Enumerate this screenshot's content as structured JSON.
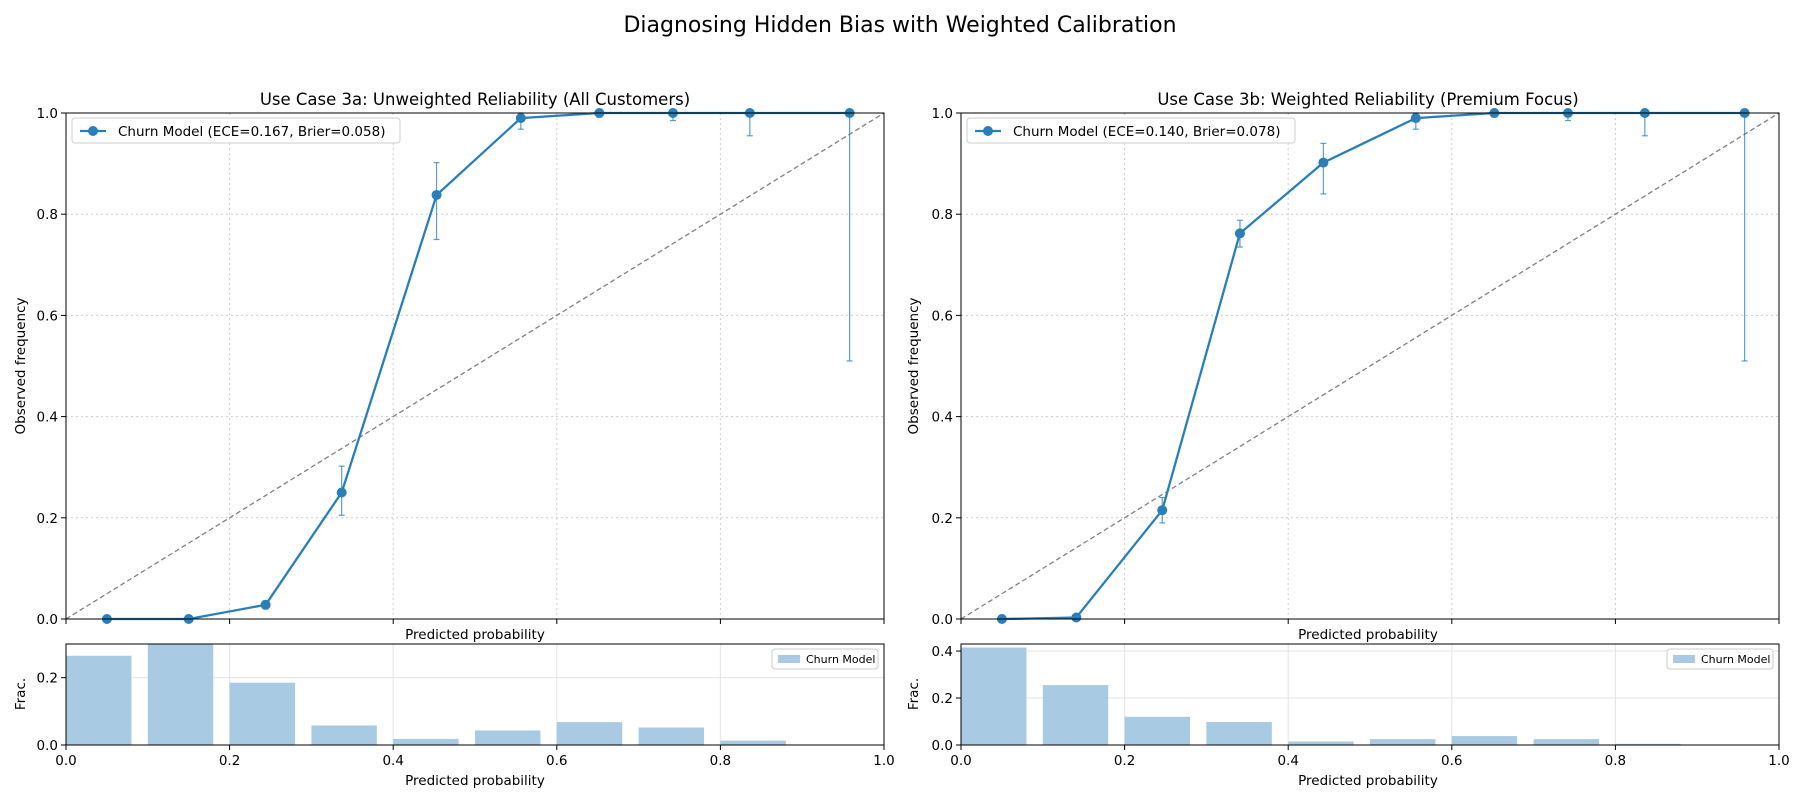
{
  "figure_title": "Diagnosing Hidden Bias with Weighted Calibration",
  "colors": {
    "line": "#2a7fb8",
    "bar": "#a8cbe3",
    "diagonal": "#808080",
    "grid": "#cccccc"
  },
  "chart_data": [
    {
      "type": "line",
      "title": "Use Case 3a: Unweighted Reliability (All Customers)",
      "xlabel": "Predicted probability",
      "ylabel": "Observed frequency",
      "xlim": [
        0,
        1
      ],
      "ylim": [
        0,
        1
      ],
      "xticks": [
        "",
        "",
        "",
        "",
        "",
        ""
      ],
      "yticks": [
        "0.0",
        "0.2",
        "0.4",
        "0.6",
        "0.8",
        "1.0"
      ],
      "grid": true,
      "legend_position": "top-left",
      "series": [
        {
          "name": "Churn Model (ECE=0.167, Brier=0.058)",
          "x": [
            0.05,
            0.15,
            0.244,
            0.337,
            0.453,
            0.556,
            0.652,
            0.742,
            0.836,
            0.958
          ],
          "y": [
            0.0,
            0.0,
            0.028,
            0.25,
            0.838,
            0.99,
            1.0,
            1.0,
            1.0,
            1.0
          ],
          "err_low": [
            0.0,
            0.0,
            0.02,
            0.205,
            0.75,
            0.968,
            0.992,
            0.985,
            0.955,
            0.51
          ],
          "err_high": [
            0.0,
            0.0,
            0.036,
            0.302,
            0.902,
            1.0,
            1.0,
            1.0,
            1.0,
            1.0
          ]
        }
      ],
      "diagonal": true,
      "histogram": {
        "xlabel": "Predicted probability",
        "ylabel": "Frac.",
        "legend": "Churn Model",
        "legend_position": "top-right",
        "ylim": [
          0,
          0.3
        ],
        "xticks": [
          "0.0",
          "0.2",
          "0.4",
          "0.6",
          "0.8",
          "1.0"
        ],
        "yticks": [
          "0.0",
          "0.2"
        ],
        "bin_width": 0.08,
        "bin_centers": [
          0.04,
          0.14,
          0.24,
          0.34,
          0.44,
          0.54,
          0.64,
          0.74,
          0.84,
          0.94
        ],
        "values": [
          0.265,
          0.3,
          0.185,
          0.058,
          0.018,
          0.043,
          0.068,
          0.052,
          0.013,
          0.001
        ]
      }
    },
    {
      "type": "line",
      "title": "Use Case 3b: Weighted Reliability (Premium Focus)",
      "xlabel": "Predicted probability",
      "ylabel": "Observed frequency",
      "xlim": [
        0,
        1
      ],
      "ylim": [
        0,
        1
      ],
      "xticks": [
        "",
        "",
        "",
        "",
        "",
        ""
      ],
      "yticks": [
        "0.0",
        "0.2",
        "0.4",
        "0.6",
        "0.8",
        "1.0"
      ],
      "grid": true,
      "legend_position": "top-left",
      "series": [
        {
          "name": "Churn Model (ECE=0.140, Brier=0.078)",
          "x": [
            0.05,
            0.141,
            0.246,
            0.341,
            0.443,
            0.556,
            0.652,
            0.742,
            0.836,
            0.958
          ],
          "y": [
            0.0,
            0.003,
            0.215,
            0.762,
            0.902,
            0.99,
            1.0,
            1.0,
            1.0,
            1.0
          ],
          "err_low": [
            0.0,
            0.0,
            0.19,
            0.735,
            0.84,
            0.968,
            0.992,
            0.985,
            0.955,
            0.51
          ],
          "err_high": [
            0.0,
            0.006,
            0.24,
            0.788,
            0.94,
            1.0,
            1.0,
            1.0,
            1.0,
            1.0
          ]
        }
      ],
      "diagonal": true,
      "histogram": {
        "xlabel": "Predicted probability",
        "ylabel": "Frac.",
        "legend": "Churn Model",
        "legend_position": "top-right",
        "ylim": [
          0,
          0.43
        ],
        "xticks": [
          "0.0",
          "0.2",
          "0.4",
          "0.6",
          "0.8",
          "1.0"
        ],
        "yticks": [
          "0.0",
          "0.2",
          "0.4"
        ],
        "bin_width": 0.08,
        "bin_centers": [
          0.04,
          0.14,
          0.24,
          0.34,
          0.44,
          0.54,
          0.64,
          0.74,
          0.84,
          0.94
        ],
        "values": [
          0.415,
          0.255,
          0.12,
          0.098,
          0.015,
          0.025,
          0.038,
          0.025,
          0.005,
          0.0
        ]
      }
    }
  ]
}
